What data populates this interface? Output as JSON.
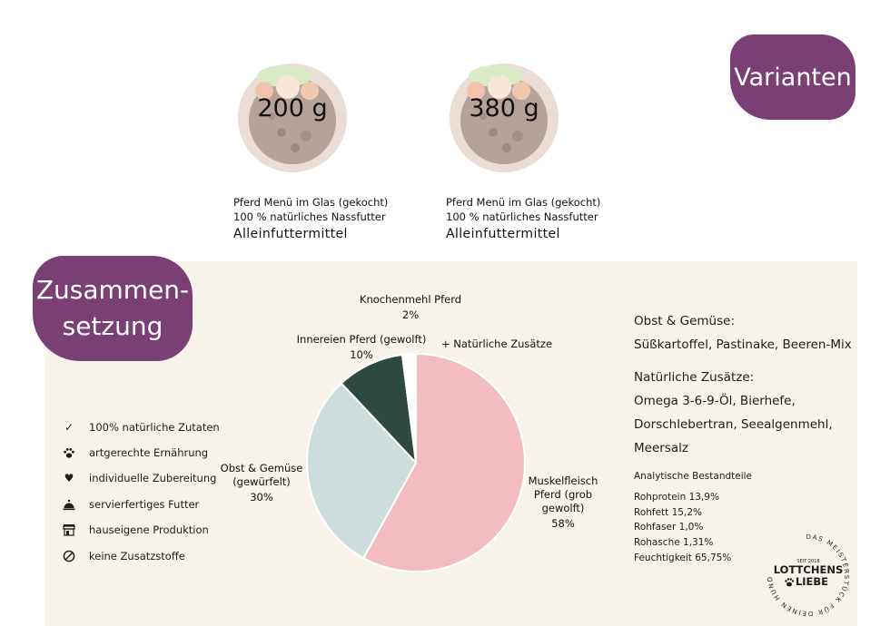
{
  "header": {
    "badge": "Varianten"
  },
  "variants": [
    {
      "weight": "200 g",
      "line1": "Pferd Menü im Glas (gekocht)",
      "line2": "100 % natürliches Nassfutter",
      "line3": "Alleinfuttermittel"
    },
    {
      "weight": "380 g",
      "line1": "Pferd Menü im Glas (gekocht)",
      "line2": "100 % natürliches Nassfutter",
      "line3": "Alleinfuttermittel"
    }
  ],
  "composition": {
    "badge_line1": "Zusammen-",
    "badge_line2": "setzung",
    "features": [
      {
        "icon": "check-icon",
        "label": "100% natürliche Zutaten"
      },
      {
        "icon": "paw-icon",
        "label": "artgerechte Ernährung"
      },
      {
        "icon": "heart-icon",
        "label": "individuelle Zubereitung"
      },
      {
        "icon": "cloche-icon",
        "label": "servierfertiges Futter"
      },
      {
        "icon": "store-icon",
        "label": "hauseigene Produktion"
      },
      {
        "icon": "no-additives-icon",
        "label": "keine Zusatzstoffe"
      }
    ],
    "details": {
      "obst_heading": "Obst & Gemüse:",
      "obst_text": "Süßkartoffel, Pastinake, Beeren-Mix",
      "zusaetze_heading": "Natürliche Zusätze:",
      "zusaetze_line1": "Omega 3-6-9-Öl, Bierhefe,",
      "zusaetze_line2": "Dorschlebertran, Seealgenmehl,",
      "zusaetze_line3": "Meersalz"
    },
    "analytics": {
      "heading": "Analytische Bestandteile",
      "rows": [
        "Rohprotein 13,9%",
        "Rohfett 15,2%",
        "Rohfaser 1,0%",
        "Rohasche 1,31%",
        "Feuchtigkeit 65,75%"
      ]
    },
    "logo": {
      "name_top": "LOTTCHENS",
      "name_bottom": "LIEBE",
      "since": "SEIT 2018",
      "ring_text": "DAS MEISTERSTÜCK FÜR DEINEN HUND"
    }
  },
  "chart_data": {
    "type": "pie",
    "slices": [
      {
        "label": "Muskelfleisch Pferd (grob gewolft)",
        "value": 58,
        "value_label": "58%",
        "color": "#f3bcc1"
      },
      {
        "label": "Obst & Gemüse (gewürfelt)",
        "value": 30,
        "value_label": "30%",
        "color": "#cddcdc"
      },
      {
        "label": "Innereien Pferd (gewolft)",
        "value": 10,
        "value_label": "10%",
        "color": "#2e4a40"
      },
      {
        "label": "Knochenmehl Pferd",
        "value": 2,
        "value_label": "2%",
        "color": "#ffffff"
      }
    ],
    "extra_label": "+ Natürliche Zusätze",
    "start": "12 o'clock",
    "direction": "clockwise"
  }
}
